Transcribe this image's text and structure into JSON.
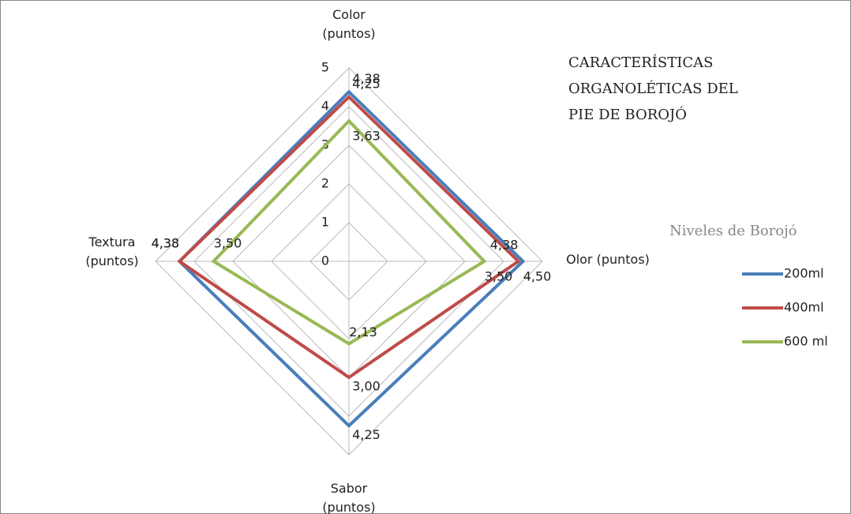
{
  "chart_data": {
    "type": "radar",
    "title": [
      "CARACTERÍSTICAS",
      "ORGANOLÉTICAS DEL",
      "PIE DE BOROJÓ"
    ],
    "legend_title": "Niveles de Borojó",
    "categories": [
      "Color (puntos)",
      "Olor (puntos)",
      "Sabor (puntos)",
      "Textura (puntos)"
    ],
    "rlim": [
      0,
      5
    ],
    "rticks": [
      0,
      1,
      2,
      3,
      4,
      5
    ],
    "grid": true,
    "legend": "right",
    "series": [
      {
        "name": "200ml",
        "color": "#4a7ebb",
        "values": [
          4.38,
          4.5,
          4.25,
          4.38
        ],
        "value_labels": [
          "4,38",
          "4,50",
          "4,25",
          "4,38"
        ]
      },
      {
        "name": "400ml",
        "color": "#be4b48",
        "values": [
          4.25,
          4.38,
          3.0,
          4.38
        ],
        "value_labels": [
          "4,25",
          "4,38",
          "3,00",
          "4,38"
        ]
      },
      {
        "name": "600 ml",
        "color": "#98b954",
        "values": [
          3.63,
          3.5,
          2.13,
          3.5
        ],
        "value_labels": [
          "3,63",
          "3,50",
          "2,13",
          "3,50"
        ]
      }
    ]
  }
}
